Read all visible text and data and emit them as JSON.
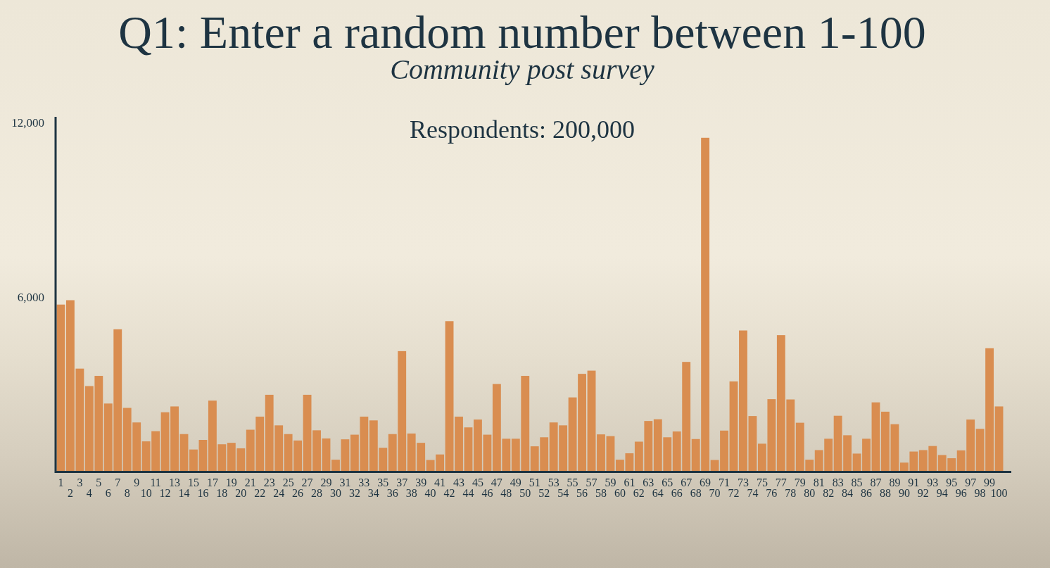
{
  "chart_data": {
    "type": "bar",
    "title": "Q1: Enter a random number between 1-100",
    "subtitle": "Community post survey",
    "annotations": [
      "Respondents: 200,000"
    ],
    "categories": [
      "1",
      "2",
      "3",
      "4",
      "5",
      "6",
      "7",
      "8",
      "9",
      "10",
      "11",
      "12",
      "13",
      "14",
      "15",
      "16",
      "17",
      "18",
      "19",
      "20",
      "21",
      "22",
      "23",
      "24",
      "25",
      "26",
      "27",
      "28",
      "29",
      "30",
      "31",
      "32",
      "33",
      "34",
      "35",
      "36",
      "37",
      "38",
      "39",
      "40",
      "41",
      "42",
      "43",
      "44",
      "45",
      "46",
      "47",
      "48",
      "49",
      "50",
      "51",
      "52",
      "53",
      "54",
      "55",
      "56",
      "57",
      "58",
      "59",
      "60",
      "61",
      "62",
      "63",
      "64",
      "65",
      "66",
      "67",
      "68",
      "69",
      "70",
      "71",
      "72",
      "73",
      "74",
      "75",
      "76",
      "77",
      "78",
      "79",
      "80",
      "81",
      "82",
      "83",
      "84",
      "85",
      "86",
      "87",
      "88",
      "89",
      "90",
      "91",
      "92",
      "93",
      "94",
      "95",
      "96",
      "97",
      "98",
      "99",
      "100"
    ],
    "values": [
      5750,
      5900,
      3550,
      2950,
      3300,
      2350,
      4900,
      2200,
      1700,
      1050,
      1400,
      2050,
      2250,
      1300,
      770,
      1100,
      2450,
      950,
      1000,
      810,
      1450,
      1900,
      2650,
      1600,
      1300,
      1080,
      2650,
      1430,
      1150,
      420,
      1120,
      1280,
      1900,
      1770,
      830,
      1300,
      4150,
      1320,
      1000,
      410,
      600,
      5180,
      1900,
      1530,
      1800,
      1280,
      3020,
      1140,
      1140,
      3300,
      880,
      1190,
      1700,
      1600,
      2560,
      3370,
      3480,
      1290,
      1230,
      420,
      640,
      1040,
      1750,
      1810,
      1190,
      1390,
      3780,
      1130,
      11480,
      410,
      1420,
      3110,
      4860,
      1920,
      970,
      2500,
      4700,
      2490,
      1690,
      420,
      750,
      1140,
      1930,
      1260,
      630,
      1140,
      2390,
      2070,
      1640,
      320,
      700,
      750,
      890,
      580,
      470,
      740,
      1800,
      1480,
      4250,
      2250
    ],
    "color": "#d98d50",
    "ylim": [
      0,
      12200
    ],
    "yticks": [
      {
        "value": 6000,
        "label": "6,000"
      },
      {
        "value": 12000,
        "label": "12,000"
      }
    ]
  }
}
